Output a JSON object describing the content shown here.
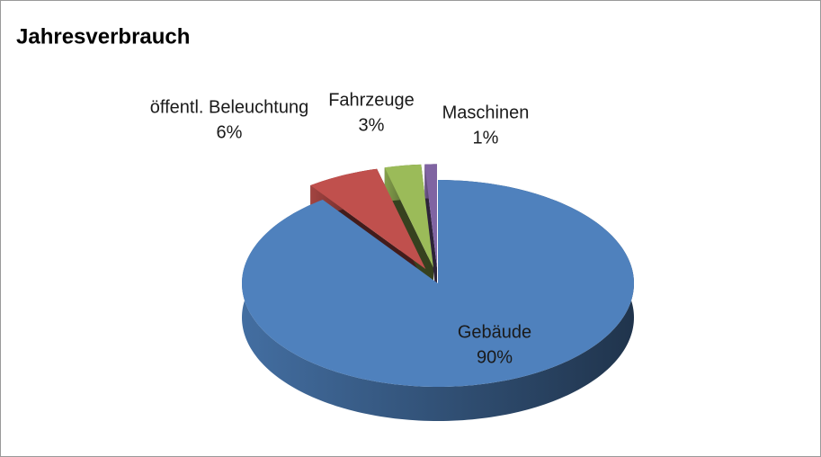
{
  "chart_data": {
    "type": "pie",
    "title": "Jahresverbrauch",
    "categories": [
      "Gebäude",
      "öffentl. Beleuchtung",
      "Fahrzeuge",
      "Maschinen"
    ],
    "values": [
      90,
      6,
      3,
      1
    ],
    "value_labels": [
      "90%",
      "6%",
      "3%",
      "1%"
    ],
    "colors": [
      "#4f81bd",
      "#c0504d",
      "#9bbb59",
      "#8064a2"
    ]
  }
}
